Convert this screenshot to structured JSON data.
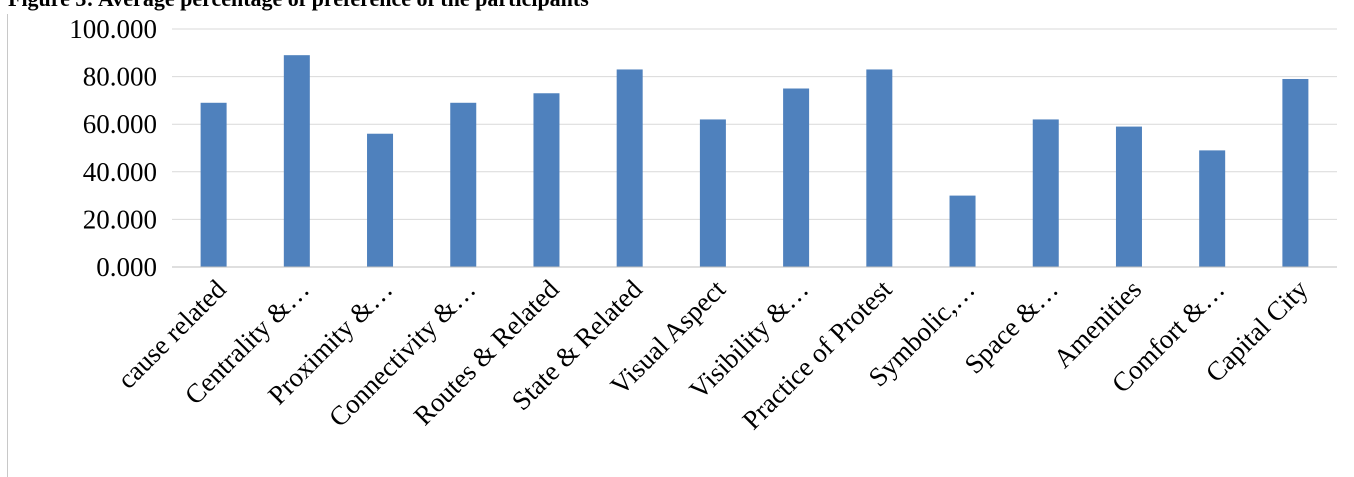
{
  "title": "Figure 3: Average percentage of preference of the participants",
  "colors": {
    "bar": "#4F81BD",
    "grid": "#D9D9D9",
    "axis": "#BFBFBF"
  },
  "chart_data": {
    "type": "bar",
    "categories": [
      "cause related",
      "Centrality &…",
      "Proximity &…",
      "Connectivity &…",
      "Routes & Related",
      "State & Related",
      "Visual Aspect",
      "Visibility &…",
      "Practice of Protest",
      "Symbolic,…",
      "Space &…",
      "Amenities",
      "Comfort &…",
      "Capital City"
    ],
    "values": [
      69,
      89,
      56,
      69,
      73,
      83,
      62,
      75,
      83,
      30,
      62,
      59,
      49,
      79
    ],
    "ylim": [
      0,
      100
    ],
    "yticks": [
      "0.000",
      "20.000",
      "40.000",
      "60.000",
      "80.000",
      "100.000"
    ],
    "ytick_values": [
      0,
      20,
      40,
      60,
      80,
      100
    ],
    "grid": true,
    "legend": "none"
  }
}
